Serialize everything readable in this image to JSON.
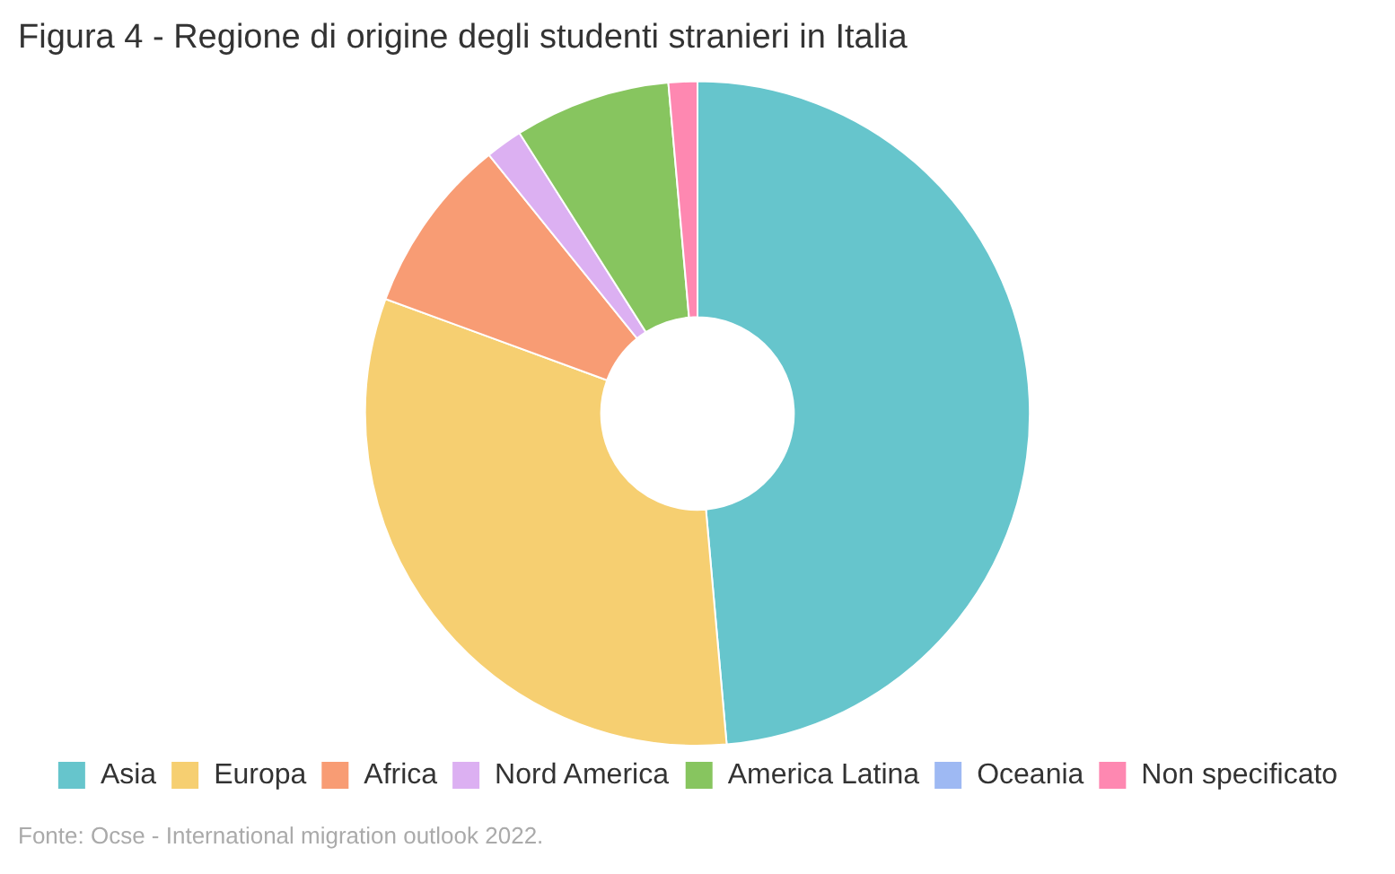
{
  "chart_data": {
    "type": "donut",
    "title": "Figura 4 - Regione di origine degli studenti stranieri in Italia",
    "categories": [
      "Asia",
      "Europa",
      "Africa",
      "Nord America",
      "America Latina",
      "Oceania",
      "Non specificato"
    ],
    "values": [
      48.6,
      32,
      8.6,
      1.8,
      7.6,
      null,
      1.4
    ],
    "colors": [
      "#66c5cc",
      "#f6cf71",
      "#f89c74",
      "#dcb0f2",
      "#87c55f",
      "#9eb9f3",
      "#fe88b1"
    ],
    "legend": "bottom",
    "annotations": [
      "Fonte: Ocse - International migration outlook 2022."
    ]
  }
}
